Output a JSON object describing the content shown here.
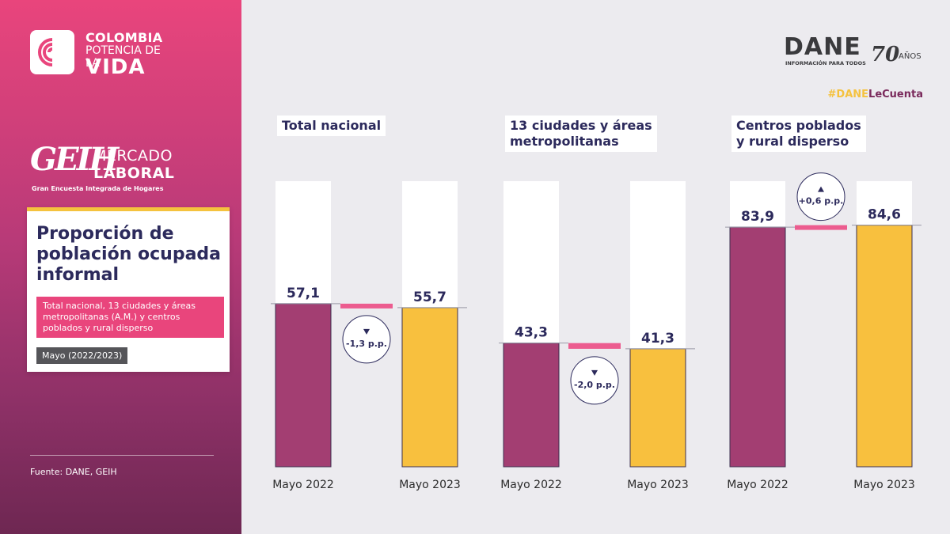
{
  "branding": {
    "gov_line1": "COLOMBIA",
    "gov_line2": "POTENCIA DE LA",
    "gov_line3": "VIDA",
    "geih_mark": "GEIH",
    "geih_mercado": "MERCADO",
    "geih_laboral": "LABORAL",
    "geih_sub": "Gran Encuesta Integrada de Hogares",
    "dane_word": "DANE",
    "dane_tagline": "INFORMACIÓN PARA TODOS",
    "dane_70": "70",
    "dane_anos": "AÑOS",
    "hashtag_part1": "#DANE",
    "hashtag_part2": "LeCuenta"
  },
  "card": {
    "title": "Proporción de población ocupada informal",
    "subtitle": "Total nacional, 13 ciudades y áreas metropolitanas (A.M.) y centros poblados y rural disperso",
    "date": "Mayo (2022/2023)"
  },
  "source": "Fuente: DANE, GEIH",
  "colors": {
    "series_2022": "#a33e72",
    "series_2023": "#f8c03e",
    "diff_bar": "#ec5c8f",
    "text_dark": "#2c2a5c"
  },
  "chart_data": [
    {
      "type": "bar",
      "title": "Total nacional",
      "categories": [
        "Mayo 2022",
        "Mayo 2023"
      ],
      "values": [
        57.1,
        55.7
      ],
      "value_labels": [
        "57,1",
        "55,7"
      ],
      "ylim": [
        0,
        100
      ],
      "change": {
        "direction": "down",
        "label": "-1,3 p.p."
      }
    },
    {
      "type": "bar",
      "title": "13 ciudades y áreas\nmetropolitanas",
      "categories": [
        "Mayo 2022",
        "Mayo 2023"
      ],
      "values": [
        43.3,
        41.3
      ],
      "value_labels": [
        "43,3",
        "41,3"
      ],
      "ylim": [
        0,
        100
      ],
      "change": {
        "direction": "down",
        "label": "-2,0 p.p."
      }
    },
    {
      "type": "bar",
      "title": "Centros poblados\ny rural disperso",
      "categories": [
        "Mayo 2022",
        "Mayo 2023"
      ],
      "values": [
        83.9,
        84.6
      ],
      "value_labels": [
        "83,9",
        "84,6"
      ],
      "ylim": [
        0,
        100
      ],
      "change": {
        "direction": "up",
        "label": "+0,6 p.p."
      }
    }
  ]
}
